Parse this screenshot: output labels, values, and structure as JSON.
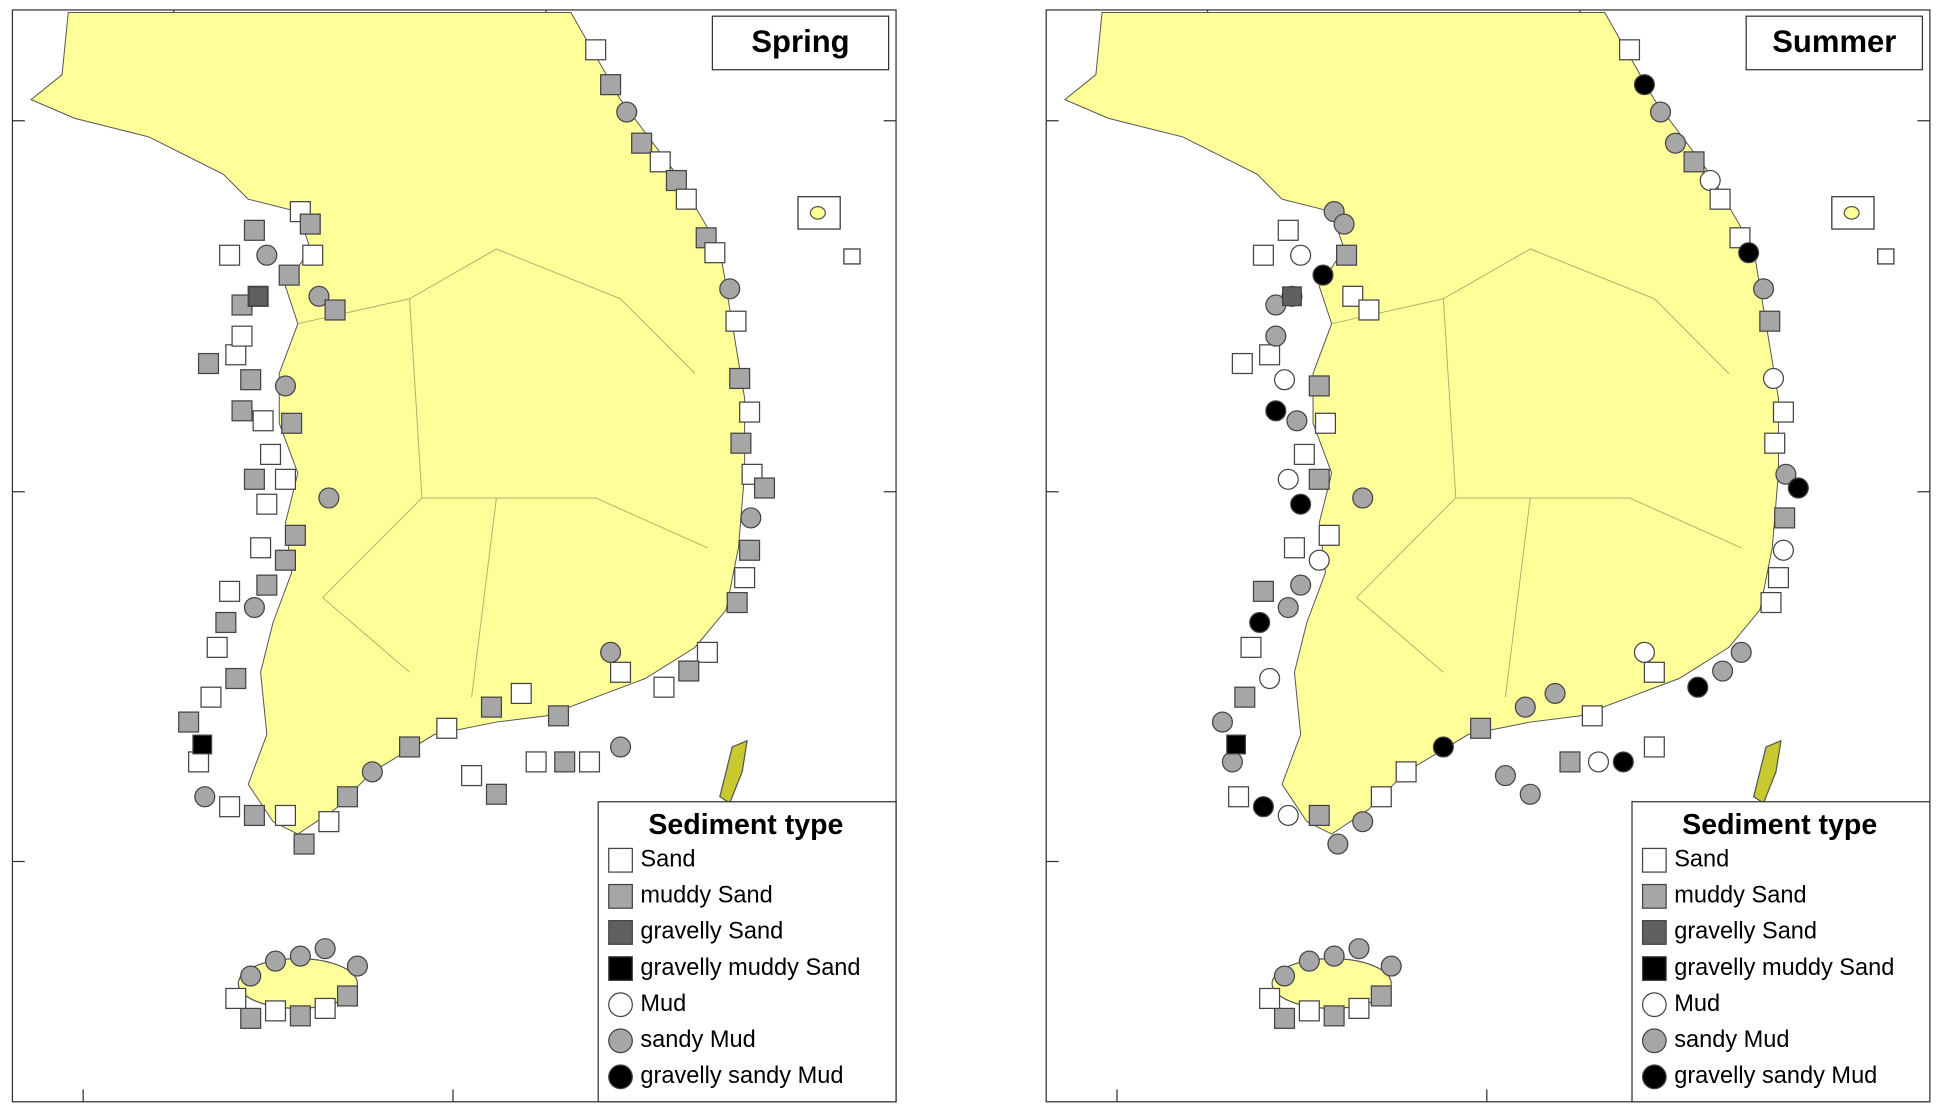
{
  "panels": [
    {
      "title": "Spring",
      "legend": {
        "title": "Sediment type",
        "items": [
          "Sand",
          "muddy Sand",
          "gravelly Sand",
          "gravelly muddy Sand",
          "Mud",
          "sandy Mud",
          "gravelly sandy Mud"
        ]
      }
    },
    {
      "title": "Summer",
      "legend": {
        "title": "Sediment type",
        "items": [
          "Sand",
          "muddy Sand",
          "gravelly Sand",
          "gravelly muddy Sand",
          "Mud",
          "sandy Mud",
          "gravelly sandy Mud"
        ]
      }
    }
  ]
}
